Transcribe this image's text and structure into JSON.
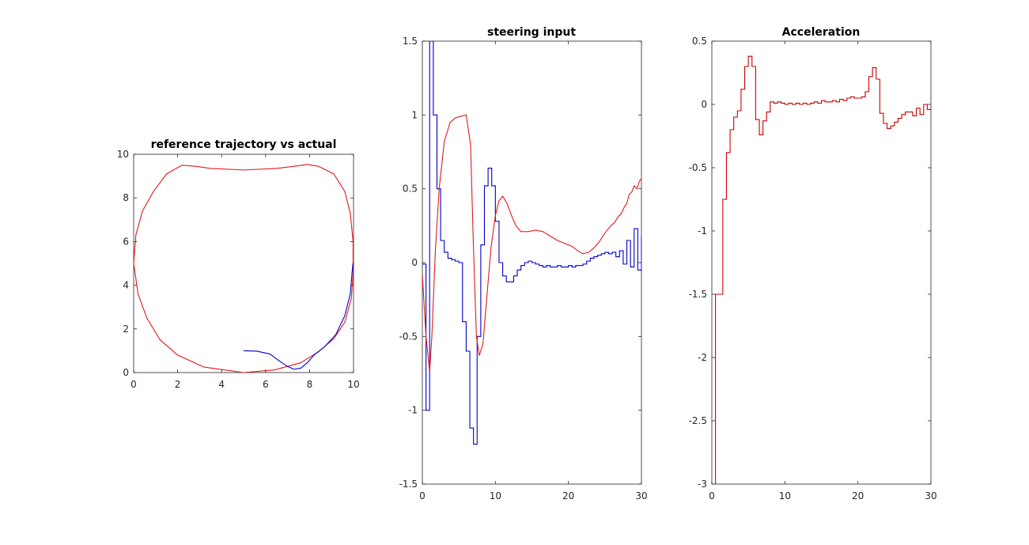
{
  "window": {
    "background": "#ffffff"
  },
  "chart_data": [
    {
      "type": "line",
      "title": "reference trajectory vs actual",
      "xlabel": "",
      "ylabel": "",
      "xlim": [
        0,
        10
      ],
      "ylim": [
        0,
        10
      ],
      "xticks": [
        0,
        2,
        4,
        6,
        8,
        10
      ],
      "yticks": [
        0,
        2,
        4,
        6,
        8,
        10
      ],
      "grid": false,
      "series": [
        {
          "color": "#e31a1c",
          "step": false,
          "points": [
            [
              5,
              0
            ],
            [
              3.2,
              0.25
            ],
            [
              2,
              0.8
            ],
            [
              1.2,
              1.5
            ],
            [
              0.6,
              2.5
            ],
            [
              0.2,
              3.6
            ],
            [
              0,
              5
            ],
            [
              0.1,
              6.3
            ],
            [
              0.4,
              7.4
            ],
            [
              0.9,
              8.3
            ],
            [
              1.5,
              9.1
            ],
            [
              2.2,
              9.5
            ],
            [
              2.8,
              9.45
            ],
            [
              3.5,
              9.35
            ],
            [
              5,
              9.28
            ],
            [
              6.5,
              9.35
            ],
            [
              7.3,
              9.45
            ],
            [
              7.9,
              9.53
            ],
            [
              8.4,
              9.45
            ],
            [
              9.1,
              9.1
            ],
            [
              9.6,
              8.3
            ],
            [
              9.85,
              7.3
            ],
            [
              9.98,
              6
            ],
            [
              9.98,
              4.5
            ],
            [
              9.9,
              3.4
            ],
            [
              9.6,
              2.3
            ],
            [
              9.1,
              1.55
            ],
            [
              8.4,
              0.95
            ],
            [
              7.6,
              0.45
            ],
            [
              6.4,
              0.12
            ],
            [
              5,
              0
            ]
          ]
        },
        {
          "color": "#0000cc",
          "step": false,
          "points": [
            [
              5,
              1
            ],
            [
              5.6,
              0.98
            ],
            [
              6.2,
              0.85
            ],
            [
              6.6,
              0.55
            ],
            [
              7,
              0.28
            ],
            [
              7.3,
              0.15
            ],
            [
              7.6,
              0.2
            ],
            [
              7.9,
              0.45
            ],
            [
              8.2,
              0.8
            ],
            [
              8.7,
              1.2
            ],
            [
              9.2,
              1.75
            ],
            [
              9.6,
              2.6
            ],
            [
              9.85,
              3.6
            ],
            [
              9.97,
              5
            ]
          ]
        }
      ]
    },
    {
      "type": "line",
      "title": "steering input",
      "xlabel": "",
      "ylabel": "",
      "xlim": [
        0,
        30
      ],
      "ylim": [
        -1.5,
        1.5
      ],
      "xticks": [
        0,
        10,
        20,
        30
      ],
      "yticks": [
        -1.5,
        -1,
        -0.5,
        0,
        0.5,
        1,
        1.5
      ],
      "grid": false,
      "series": [
        {
          "color": "#0000cc",
          "step": true,
          "points": [
            [
              0,
              -0.01
            ],
            [
              0.5,
              -1
            ],
            [
              1,
              1.5
            ],
            [
              1.5,
              1
            ],
            [
              2,
              0.5
            ],
            [
              2.5,
              0.15
            ],
            [
              3,
              0.07
            ],
            [
              3.5,
              0.03
            ],
            [
              4,
              0.02
            ],
            [
              4.5,
              0.01
            ],
            [
              5,
              0
            ],
            [
              5.5,
              -0.4
            ],
            [
              6,
              -0.6
            ],
            [
              6.5,
              -1.12
            ],
            [
              7,
              -1.23
            ],
            [
              7.5,
              -0.5
            ],
            [
              8,
              0.12
            ],
            [
              8.5,
              0.52
            ],
            [
              9,
              0.64
            ],
            [
              9.5,
              0.52
            ],
            [
              10,
              0.28
            ],
            [
              10.5,
              0
            ],
            [
              11,
              -0.09
            ],
            [
              11.5,
              -0.13
            ],
            [
              12,
              -0.13
            ],
            [
              12.5,
              -0.09
            ],
            [
              13,
              -0.05
            ],
            [
              13.5,
              -0.02
            ],
            [
              14,
              0
            ],
            [
              14.5,
              0.01
            ],
            [
              15,
              0
            ],
            [
              15.5,
              -0.01
            ],
            [
              16,
              -0.02
            ],
            [
              16.5,
              -0.03
            ],
            [
              17,
              -0.02
            ],
            [
              17.5,
              -0.03
            ],
            [
              18,
              -0.03
            ],
            [
              18.5,
              -0.02
            ],
            [
              19,
              -0.03
            ],
            [
              19.5,
              -0.03
            ],
            [
              20,
              -0.02
            ],
            [
              20.5,
              -0.03
            ],
            [
              21,
              -0.02
            ],
            [
              21.5,
              -0.02
            ],
            [
              22,
              -0.01
            ],
            [
              22.5,
              0.01
            ],
            [
              23,
              0.03
            ],
            [
              23.5,
              0.04
            ],
            [
              24,
              0.05
            ],
            [
              24.5,
              0.06
            ],
            [
              25,
              0.07
            ],
            [
              25.5,
              0.06
            ],
            [
              26,
              0.07
            ],
            [
              26.5,
              0.04
            ],
            [
              27,
              0.08
            ],
            [
              27.5,
              -0.01
            ],
            [
              28,
              0.15
            ],
            [
              28.5,
              -0.03
            ],
            [
              29,
              0.23
            ],
            [
              29.5,
              -0.05
            ],
            [
              30,
              0.18
            ],
            [
              30,
              -0.06
            ]
          ]
        },
        {
          "color": "#e31a1c",
          "step": false,
          "points": [
            [
              0,
              -0.08
            ],
            [
              0.5,
              -0.5
            ],
            [
              1,
              -0.74
            ],
            [
              1.3,
              -0.5
            ],
            [
              1.8,
              0.1
            ],
            [
              2.3,
              0.5
            ],
            [
              3,
              0.82
            ],
            [
              3.8,
              0.95
            ],
            [
              4.5,
              0.98
            ],
            [
              5.2,
              0.99
            ],
            [
              6,
              1
            ],
            [
              6.6,
              0.8
            ],
            [
              7,
              0.1
            ],
            [
              7.4,
              -0.5
            ],
            [
              7.8,
              -0.63
            ],
            [
              8.3,
              -0.55
            ],
            [
              8.8,
              -0.25
            ],
            [
              9.4,
              0.1
            ],
            [
              10,
              0.32
            ],
            [
              10.5,
              0.42
            ],
            [
              11,
              0.45
            ],
            [
              11.6,
              0.4
            ],
            [
              12.2,
              0.32
            ],
            [
              12.8,
              0.25
            ],
            [
              13.5,
              0.21
            ],
            [
              14.5,
              0.21
            ],
            [
              15.5,
              0.22
            ],
            [
              16.5,
              0.21
            ],
            [
              17.5,
              0.18
            ],
            [
              18.5,
              0.15
            ],
            [
              19.5,
              0.13
            ],
            [
              20.5,
              0.11
            ],
            [
              21.3,
              0.08
            ],
            [
              22,
              0.06
            ],
            [
              22.8,
              0.07
            ],
            [
              23.5,
              0.1
            ],
            [
              24.2,
              0.14
            ],
            [
              25,
              0.2
            ],
            [
              25.8,
              0.25
            ],
            [
              26.3,
              0.27
            ],
            [
              26.8,
              0.31
            ],
            [
              27.2,
              0.33
            ],
            [
              27.7,
              0.38
            ],
            [
              28,
              0.4
            ],
            [
              28.3,
              0.46
            ],
            [
              28.7,
              0.48
            ],
            [
              29,
              0.52
            ],
            [
              29.4,
              0.5
            ],
            [
              29.7,
              0.55
            ],
            [
              30,
              0.57
            ]
          ]
        }
      ]
    },
    {
      "type": "line",
      "title": "Acceleration",
      "xlabel": "",
      "ylabel": "",
      "xlim": [
        0,
        30
      ],
      "ylim": [
        -3,
        0.5
      ],
      "xticks": [
        0,
        10,
        20,
        30
      ],
      "yticks": [
        -3,
        -2.5,
        -2,
        -1.5,
        -1,
        -0.5,
        0,
        0.5
      ],
      "grid": false,
      "series": [
        {
          "color": "#cc0000",
          "step": true,
          "points": [
            [
              0,
              -3
            ],
            [
              0.5,
              -1.5
            ],
            [
              1,
              -1.5
            ],
            [
              1.5,
              -0.75
            ],
            [
              2,
              -0.38
            ],
            [
              2.5,
              -0.2
            ],
            [
              3,
              -0.1
            ],
            [
              3.5,
              -0.05
            ],
            [
              4,
              0.12
            ],
            [
              4.5,
              0.3
            ],
            [
              5,
              0.38
            ],
            [
              5.5,
              0.3
            ],
            [
              6,
              -0.12
            ],
            [
              6.5,
              -0.24
            ],
            [
              7,
              -0.13
            ],
            [
              7.5,
              -0.06
            ],
            [
              8,
              0.02
            ],
            [
              8.5,
              0.01
            ],
            [
              9,
              0.02
            ],
            [
              9.5,
              0.01
            ],
            [
              10,
              0
            ],
            [
              10.5,
              0.01
            ],
            [
              11,
              0
            ],
            [
              11.5,
              0.01
            ],
            [
              12,
              0
            ],
            [
              12.5,
              0.01
            ],
            [
              13,
              0
            ],
            [
              13.5,
              0.01
            ],
            [
              14,
              0.02
            ],
            [
              14.5,
              0.01
            ],
            [
              15,
              0.03
            ],
            [
              15.5,
              0.02
            ],
            [
              16,
              0.02
            ],
            [
              16.5,
              0.03
            ],
            [
              17,
              0.02
            ],
            [
              17.5,
              0.04
            ],
            [
              18,
              0.03
            ],
            [
              18.5,
              0.05
            ],
            [
              19,
              0.06
            ],
            [
              19.5,
              0.05
            ],
            [
              20,
              0.05
            ],
            [
              20.5,
              0.06
            ],
            [
              21,
              0.1
            ],
            [
              21.5,
              0.22
            ],
            [
              22,
              0.29
            ],
            [
              22.5,
              0.2
            ],
            [
              23,
              -0.07
            ],
            [
              23.5,
              -0.15
            ],
            [
              24,
              -0.19
            ],
            [
              24.5,
              -0.17
            ],
            [
              25,
              -0.14
            ],
            [
              25.5,
              -0.11
            ],
            [
              26,
              -0.08
            ],
            [
              26.5,
              -0.06
            ],
            [
              27,
              -0.06
            ],
            [
              27.5,
              -0.09
            ],
            [
              28,
              -0.03
            ],
            [
              28.5,
              -0.08
            ],
            [
              29,
              0
            ],
            [
              29.5,
              -0.04
            ],
            [
              30,
              -0.02
            ],
            [
              30,
              -0.04
            ]
          ]
        }
      ]
    }
  ]
}
